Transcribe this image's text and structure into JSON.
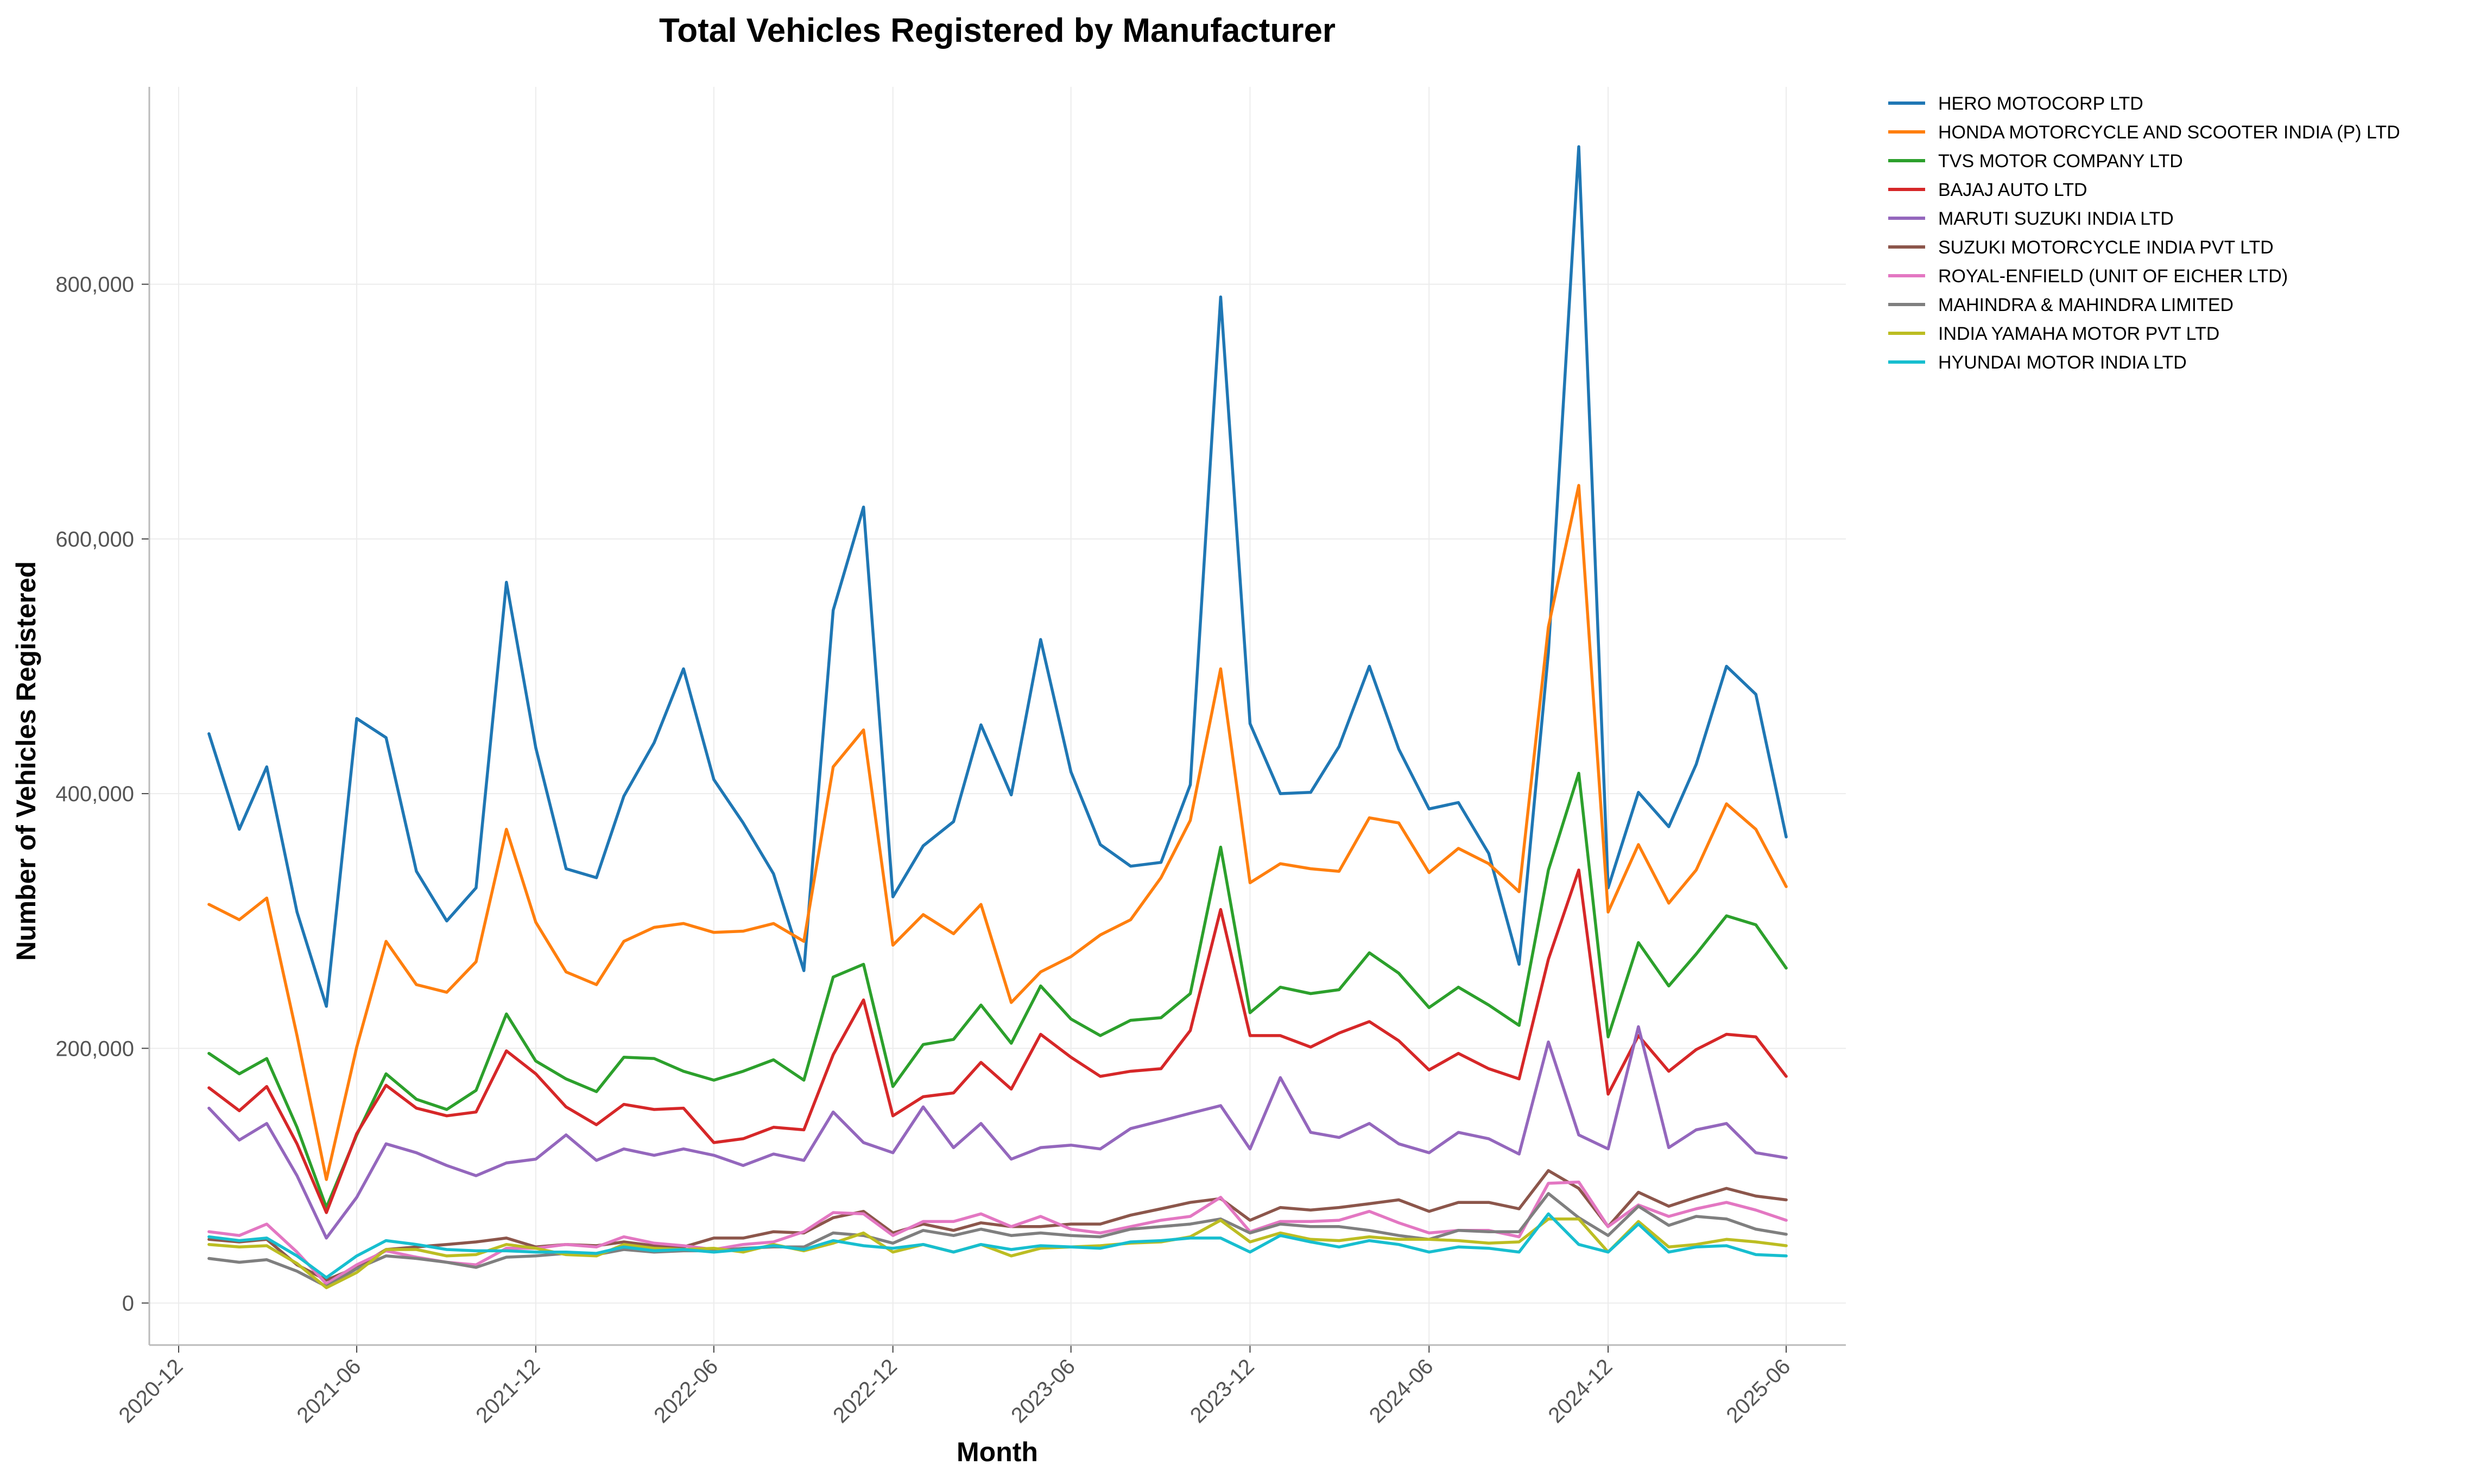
{
  "chart_data": {
    "type": "line",
    "title": "Total Vehicles Registered by Manufacturer",
    "xlabel": "Month",
    "ylabel": "Number of Vehicles Registered",
    "grid": true,
    "legend_position": "outside-right",
    "x_ticks": [
      "2020-12",
      "2021-06",
      "2021-12",
      "2022-06",
      "2022-12",
      "2023-06",
      "2023-12",
      "2024-06",
      "2024-12",
      "2025-06"
    ],
    "y_ticks": [
      "0",
      "200,000",
      "400,000",
      "600,000",
      "800,000"
    ],
    "x_range": [
      "2020-11-01",
      "2025-08-01"
    ],
    "ylim": [
      -33000,
      955000
    ],
    "x": [
      "2021-01",
      "2021-02",
      "2021-03",
      "2021-04",
      "2021-05",
      "2021-06",
      "2021-07",
      "2021-08",
      "2021-09",
      "2021-10",
      "2021-11",
      "2021-12",
      "2022-01",
      "2022-02",
      "2022-03",
      "2022-04",
      "2022-05",
      "2022-06",
      "2022-07",
      "2022-08",
      "2022-09",
      "2022-10",
      "2022-11",
      "2022-12",
      "2023-01",
      "2023-02",
      "2023-03",
      "2023-04",
      "2023-05",
      "2023-06",
      "2023-07",
      "2023-08",
      "2023-09",
      "2023-10",
      "2023-11",
      "2023-12",
      "2024-01",
      "2024-02",
      "2024-03",
      "2024-04",
      "2024-05",
      "2024-06",
      "2024-07",
      "2024-08",
      "2024-09",
      "2024-10",
      "2024-11",
      "2024-12",
      "2025-01",
      "2025-02",
      "2025-03",
      "2025-04",
      "2025-05",
      "2025-06"
    ],
    "series": [
      {
        "name": "HERO MOTOCORP LTD",
        "color": "#1f77b4",
        "values": [
          447000,
          372000,
          421000,
          307000,
          233000,
          459000,
          444000,
          339000,
          300000,
          326000,
          566000,
          436000,
          341000,
          334000,
          398000,
          440000,
          498000,
          411000,
          377000,
          337000,
          261000,
          544000,
          625000,
          319000,
          359000,
          378000,
          454000,
          399000,
          521000,
          417000,
          360000,
          343000,
          346000,
          407000,
          790000,
          455000,
          400000,
          401000,
          437000,
          500000,
          435000,
          388000,
          393000,
          353000,
          266000,
          511000,
          908000,
          326000,
          401000,
          374000,
          423000,
          500000,
          478000,
          366000
        ]
      },
      {
        "name": "HONDA MOTORCYCLE AND SCOOTER INDIA (P) LTD",
        "color": "#ff7f0e",
        "values": [
          313000,
          301000,
          318000,
          210000,
          97000,
          201000,
          284000,
          250000,
          244000,
          268000,
          372000,
          299000,
          260000,
          250000,
          284000,
          295000,
          298000,
          291000,
          292000,
          298000,
          284000,
          421000,
          450000,
          281000,
          305000,
          290000,
          313000,
          236000,
          260000,
          272000,
          289000,
          301000,
          334000,
          379000,
          498000,
          330000,
          345000,
          341000,
          339000,
          381000,
          377000,
          338000,
          357000,
          345000,
          323000,
          531000,
          642000,
          307000,
          360000,
          314000,
          340000,
          392000,
          372000,
          327000
        ]
      },
      {
        "name": "TVS MOTOR COMPANY LTD",
        "color": "#2ca02c",
        "values": [
          196000,
          180000,
          192000,
          138000,
          75000,
          132000,
          180000,
          160000,
          152000,
          167000,
          227000,
          190000,
          176000,
          166000,
          193000,
          192000,
          182000,
          175000,
          182000,
          191000,
          175000,
          256000,
          266000,
          170000,
          203000,
          207000,
          234000,
          204000,
          249000,
          223000,
          210000,
          222000,
          224000,
          243000,
          358000,
          228000,
          248000,
          243000,
          246000,
          275000,
          259000,
          232000,
          248000,
          234000,
          218000,
          340000,
          416000,
          209000,
          283000,
          249000,
          274000,
          304000,
          297000,
          263000
        ]
      },
      {
        "name": "BAJAJ AUTO LTD",
        "color": "#d62728",
        "values": [
          169000,
          151000,
          170000,
          125000,
          71000,
          133000,
          171000,
          153000,
          147000,
          150000,
          198000,
          180000,
          154000,
          140000,
          156000,
          152000,
          153000,
          126000,
          129000,
          138000,
          136000,
          195000,
          238000,
          147000,
          162000,
          165000,
          189000,
          168000,
          211000,
          193000,
          178000,
          182000,
          184000,
          214000,
          309000,
          210000,
          210000,
          201000,
          212000,
          221000,
          206000,
          183000,
          196000,
          184000,
          176000,
          270000,
          340000,
          164000,
          210000,
          182000,
          199000,
          211000,
          209000,
          178000
        ]
      },
      {
        "name": "MARUTI SUZUKI INDIA LTD",
        "color": "#9467bd",
        "values": [
          153000,
          128000,
          141000,
          100000,
          51000,
          83000,
          125000,
          118000,
          108000,
          100000,
          110000,
          113000,
          132000,
          112000,
          121000,
          116000,
          121000,
          116000,
          108000,
          117000,
          112000,
          150000,
          126000,
          118000,
          154000,
          122000,
          141000,
          113000,
          122000,
          124000,
          121000,
          137000,
          143000,
          149000,
          155000,
          121000,
          177000,
          134000,
          130000,
          141000,
          125000,
          118000,
          134000,
          129000,
          117000,
          205000,
          132000,
          121000,
          217000,
          122000,
          136000,
          141000,
          118000,
          114000
        ]
      },
      {
        "name": "SUZUKI MOTORCYCLE INDIA PVT LTD",
        "color": "#8c564b",
        "values": [
          50000,
          48000,
          50000,
          30000,
          18000,
          28000,
          42000,
          44000,
          46000,
          48000,
          51000,
          44000,
          46000,
          45000,
          48000,
          45000,
          44000,
          51000,
          51000,
          56000,
          55000,
          67000,
          72000,
          55000,
          62000,
          57000,
          63000,
          60000,
          60000,
          62000,
          62000,
          69000,
          74000,
          79000,
          82000,
          65000,
          75000,
          73000,
          75000,
          78000,
          81000,
          72000,
          79000,
          79000,
          74000,
          104000,
          90000,
          60000,
          87000,
          76000,
          83000,
          90000,
          84000,
          81000
        ]
      },
      {
        "name": "ROYAL-ENFIELD (UNIT OF EICHER LTD)",
        "color": "#e377c2",
        "values": [
          56000,
          53000,
          62000,
          40000,
          15000,
          30000,
          41000,
          36000,
          32000,
          30000,
          43000,
          43000,
          46000,
          44000,
          52000,
          47000,
          45000,
          42000,
          46000,
          48000,
          56000,
          71000,
          70000,
          53000,
          64000,
          64000,
          70000,
          60000,
          68000,
          58000,
          55000,
          60000,
          65000,
          68000,
          83000,
          56000,
          64000,
          64000,
          65000,
          72000,
          63000,
          55000,
          57000,
          57000,
          52000,
          94000,
          95000,
          60000,
          77000,
          68000,
          74000,
          79000,
          73000,
          65000
        ]
      },
      {
        "name": "MAHINDRA & MAHINDRA LIMITED",
        "color": "#7f7f7f",
        "values": [
          35000,
          32000,
          34000,
          25000,
          13000,
          27000,
          37000,
          35000,
          32000,
          28000,
          36000,
          37000,
          39000,
          38000,
          42000,
          40000,
          41000,
          41000,
          43000,
          44000,
          44000,
          55000,
          53000,
          47000,
          57000,
          53000,
          58000,
          53000,
          55000,
          53000,
          52000,
          58000,
          60000,
          62000,
          66000,
          55000,
          62000,
          60000,
          60000,
          57000,
          53000,
          50000,
          57000,
          56000,
          56000,
          86000,
          67000,
          53000,
          76000,
          61000,
          68000,
          66000,
          58000,
          54000
        ]
      },
      {
        "name": "INDIA YAMAHA MOTOR PVT LTD",
        "color": "#bcbd22",
        "values": [
          46000,
          44000,
          45000,
          31000,
          12000,
          24000,
          42000,
          42000,
          37000,
          38000,
          46000,
          43000,
          38000,
          37000,
          46000,
          43000,
          42000,
          43000,
          40000,
          46000,
          41000,
          47000,
          55000,
          40000,
          46000,
          40000,
          46000,
          37000,
          43000,
          44000,
          45000,
          47000,
          48000,
          52000,
          65000,
          48000,
          55000,
          50000,
          49000,
          52000,
          50000,
          50000,
          49000,
          47000,
          48000,
          66000,
          66000,
          40000,
          64000,
          44000,
          46000,
          50000,
          48000,
          45000
        ]
      },
      {
        "name": "HYUNDAI MOTOR INDIA LTD",
        "color": "#17becf",
        "values": [
          52000,
          49000,
          51000,
          37000,
          20000,
          37000,
          49000,
          46000,
          42000,
          41000,
          41000,
          40000,
          40000,
          39000,
          44000,
          41000,
          42000,
          40000,
          42000,
          45000,
          42000,
          49000,
          45000,
          43000,
          46000,
          40000,
          46000,
          42000,
          45000,
          44000,
          43000,
          48000,
          49000,
          51000,
          51000,
          40000,
          53000,
          48000,
          44000,
          49000,
          46000,
          40000,
          44000,
          43000,
          40000,
          70000,
          46000,
          40000,
          62000,
          40000,
          44000,
          45000,
          38000,
          37000
        ]
      }
    ]
  }
}
